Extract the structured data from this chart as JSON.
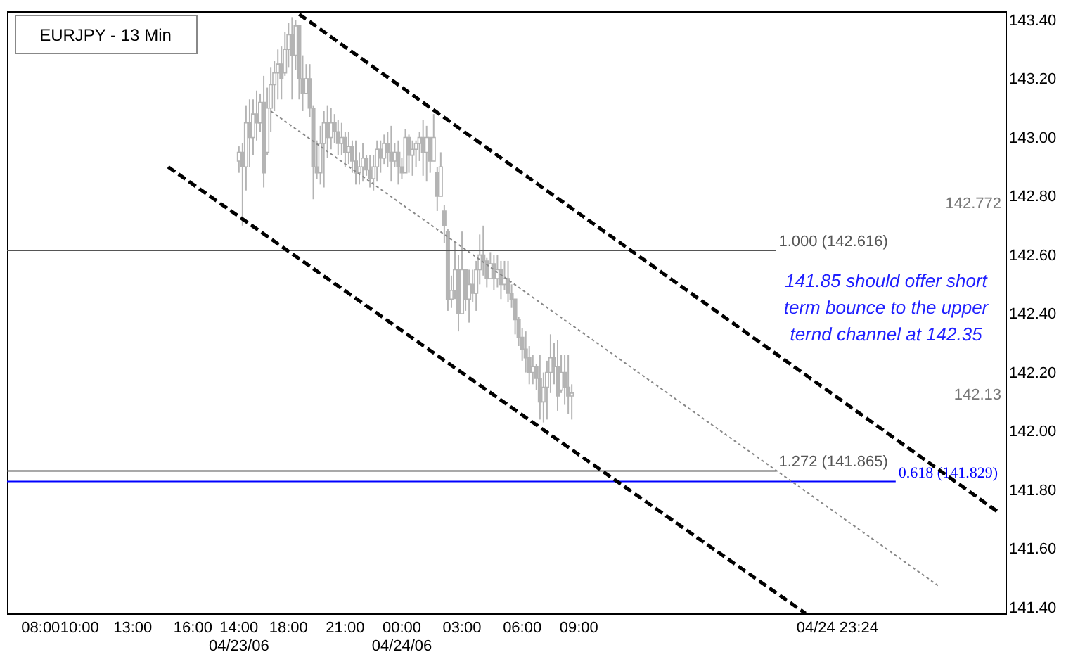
{
  "chart_data": {
    "type": "candlestick",
    "title": "EURJPY - 13 Min",
    "color": "#b4b4b4",
    "categories": [
      null,
      null,
      null,
      null,
      null,
      null,
      null,
      null,
      null,
      "08:00",
      null,
      null,
      null,
      null,
      null,
      null,
      null,
      null,
      null,
      null,
      "10:00",
      null,
      null,
      null,
      null,
      null,
      null,
      null,
      null,
      null,
      null,
      null,
      null,
      null,
      null,
      "13:00",
      null,
      null,
      null,
      null,
      null,
      null,
      null,
      null,
      null,
      null,
      null,
      null,
      null,
      null,
      null,
      null,
      "16:00",
      null,
      null,
      null,
      null,
      null,
      null,
      null,
      null,
      null,
      null,
      null,
      null,
      "14:00\n04/23/06",
      null,
      null,
      null,
      null,
      null,
      null,
      null,
      null,
      null,
      null,
      null,
      null,
      null,
      "18:00",
      null,
      null,
      null,
      null,
      null,
      null,
      null,
      null,
      null,
      null,
      null,
      null,
      null,
      null,
      null,
      "21:00",
      null,
      null,
      null,
      null,
      null,
      null,
      null,
      null,
      null,
      null,
      null,
      null,
      null,
      null,
      null,
      "00:00\n04/24/06",
      null,
      null,
      null,
      null,
      null,
      null,
      null,
      null,
      null,
      null,
      null,
      null,
      null,
      null,
      null,
      null,
      "03:00",
      null,
      null,
      null,
      null,
      null,
      null,
      null,
      null,
      null,
      null,
      null,
      null,
      null,
      null,
      null,
      null,
      "06:00",
      null,
      null,
      null,
      null,
      null,
      null,
      null,
      null,
      null,
      null,
      null,
      null,
      null,
      null,
      null,
      "09:00",
      null,
      null,
      null,
      null,
      null,
      null,
      null,
      null,
      null,
      null,
      null,
      null,
      null,
      null,
      null,
      null,
      null,
      null,
      null,
      null,
      null,
      null,
      null,
      null,
      null,
      null,
      null,
      null,
      null,
      null,
      null,
      null,
      null,
      null,
      null,
      null,
      null,
      null,
      null,
      null,
      null,
      null,
      null,
      null,
      null,
      null,
      null,
      null,
      null,
      null,
      null,
      null,
      null,
      null,
      null,
      null,
      null,
      null,
      null,
      null,
      null,
      null,
      null,
      null,
      null,
      null,
      null,
      null,
      null,
      null,
      null,
      null,
      "04/24 23:24",
      null,
      null,
      null,
      null,
      null,
      null,
      null,
      null,
      null,
      null,
      null,
      null,
      null,
      null,
      null,
      null,
      null,
      null,
      null,
      null,
      null,
      null,
      null,
      null,
      null,
      null,
      null,
      null,
      null,
      null,
      null,
      null,
      null,
      null,
      null,
      null,
      null,
      null,
      null,
      null,
      null,
      null,
      null,
      null,
      null,
      null,
      null
    ],
    "ohlc": [
      null,
      null,
      null,
      null,
      null,
      null,
      null,
      null,
      null,
      null,
      null,
      null,
      null,
      null,
      null,
      null,
      null,
      null,
      null,
      null,
      null,
      null,
      null,
      null,
      null,
      null,
      null,
      null,
      null,
      null,
      null,
      null,
      null,
      null,
      null,
      null,
      null,
      null,
      null,
      null,
      null,
      null,
      null,
      null,
      null,
      null,
      null,
      null,
      null,
      null,
      null,
      null,
      null,
      null,
      null,
      null,
      null,
      null,
      null,
      null,
      null,
      null,
      null,
      null,
      null,
      [
        142.92,
        142.97,
        142.88,
        142.95
      ],
      [
        142.95,
        142.98,
        142.7,
        142.9
      ],
      [
        142.9,
        143.11,
        142.82,
        143.05
      ],
      [
        143.05,
        143.13,
        142.9,
        143.0
      ],
      [
        143.0,
        143.13,
        142.94,
        143.08
      ],
      [
        143.08,
        143.16,
        142.99,
        143.05
      ],
      [
        143.05,
        143.15,
        143.02,
        143.12
      ],
      [
        143.12,
        143.21,
        142.83,
        142.88
      ],
      [
        142.95,
        143.17,
        142.94,
        143.1
      ],
      [
        143.1,
        143.24,
        143.02,
        143.18
      ],
      [
        143.18,
        143.26,
        143.09,
        143.22
      ],
      [
        143.22,
        143.3,
        143.13,
        143.25
      ],
      [
        143.25,
        143.31,
        143.13,
        143.2
      ],
      [
        143.22,
        143.36,
        143.21,
        143.3
      ],
      [
        143.3,
        143.39,
        143.24,
        143.35
      ],
      [
        143.35,
        143.41,
        143.13,
        143.28
      ],
      [
        143.28,
        143.4,
        143.23,
        143.38
      ],
      [
        143.38,
        143.38,
        143.13,
        143.2
      ],
      [
        143.2,
        143.28,
        143.09,
        143.15
      ],
      [
        143.15,
        143.25,
        143.15,
        143.2
      ],
      [
        143.2,
        143.25,
        143.07,
        143.1
      ],
      [
        143.1,
        143.11,
        142.79,
        142.9
      ],
      [
        142.9,
        142.99,
        142.86,
        142.88
      ],
      [
        142.88,
        143.04,
        142.84,
        142.98
      ],
      [
        142.98,
        143.09,
        142.83,
        143.05
      ],
      [
        143.05,
        143.11,
        142.93,
        143.0
      ],
      [
        143.0,
        143.1,
        142.96,
        143.05
      ],
      [
        143.05,
        143.08,
        142.98,
        143.02
      ],
      [
        143.02,
        143.06,
        142.94,
        142.98
      ],
      [
        142.98,
        143.05,
        142.94,
        143.0
      ],
      [
        143.0,
        143.02,
        142.9,
        142.95
      ],
      [
        142.95,
        143.02,
        142.91,
        142.97
      ],
      [
        142.97,
        142.99,
        142.88,
        142.92
      ],
      [
        142.92,
        142.99,
        142.84,
        142.88
      ],
      [
        142.88,
        142.95,
        142.84,
        142.9
      ],
      [
        142.9,
        142.98,
        142.85,
        142.93
      ],
      [
        142.93,
        142.94,
        142.87,
        142.89
      ],
      [
        142.89,
        142.94,
        142.83,
        142.86
      ],
      [
        142.86,
        142.94,
        142.82,
        142.9
      ],
      [
        142.9,
        142.99,
        142.85,
        142.96
      ],
      [
        142.96,
        142.99,
        142.88,
        142.93
      ],
      [
        142.93,
        143.01,
        142.91,
        142.98
      ],
      [
        142.98,
        143.02,
        142.9,
        142.95
      ],
      [
        142.95,
        143.04,
        142.85,
        142.92
      ],
      [
        142.92,
        142.98,
        142.9,
        142.95
      ],
      [
        142.95,
        142.99,
        142.84,
        142.9
      ],
      [
        142.9,
        142.93,
        142.86,
        142.88
      ],
      [
        142.88,
        143.03,
        142.88,
        143.0
      ],
      [
        143.0,
        143.01,
        142.88,
        142.94
      ],
      [
        142.94,
        142.99,
        142.87,
        142.96
      ],
      [
        142.96,
        142.99,
        142.9,
        142.98
      ],
      [
        142.98,
        143.02,
        142.92,
        143.0
      ],
      [
        143.0,
        143.06,
        142.87,
        142.95
      ],
      [
        142.95,
        143.04,
        142.85,
        143.0
      ],
      [
        143.0,
        143.0,
        142.88,
        142.92
      ],
      [
        142.92,
        143.08,
        142.92,
        143.0
      ],
      [
        142.88,
        142.9,
        142.75,
        142.8
      ],
      [
        142.8,
        142.95,
        142.8,
        142.9
      ],
      [
        142.75,
        142.77,
        142.64,
        142.7
      ],
      [
        142.68,
        142.69,
        142.41,
        142.45
      ],
      [
        142.45,
        142.53,
        142.42,
        142.48
      ],
      [
        142.48,
        142.64,
        142.45,
        142.55
      ],
      [
        142.55,
        142.6,
        142.34,
        142.4
      ],
      [
        142.4,
        142.68,
        142.4,
        142.55
      ],
      [
        142.55,
        142.55,
        142.41,
        142.45
      ],
      [
        142.45,
        142.55,
        142.37,
        142.5
      ],
      [
        142.5,
        142.55,
        142.44,
        142.47
      ],
      [
        142.47,
        142.58,
        142.41,
        142.55
      ],
      [
        142.55,
        142.67,
        142.5,
        142.6
      ],
      [
        142.6,
        142.7,
        142.53,
        142.58
      ],
      [
        142.58,
        142.59,
        142.49,
        142.52
      ],
      [
        142.52,
        142.61,
        142.52,
        142.57
      ],
      [
        142.57,
        142.6,
        142.48,
        142.52
      ],
      [
        142.52,
        142.6,
        142.49,
        142.55
      ],
      [
        142.55,
        142.58,
        142.45,
        142.5
      ],
      [
        142.5,
        142.58,
        142.48,
        142.52
      ],
      [
        142.52,
        142.58,
        142.44,
        142.47
      ],
      [
        142.47,
        142.5,
        142.42,
        142.45
      ],
      [
        142.45,
        142.45,
        142.33,
        142.38
      ],
      [
        142.38,
        142.39,
        142.29,
        142.32
      ],
      [
        142.32,
        142.35,
        142.24,
        142.28
      ],
      [
        142.28,
        142.34,
        142.2,
        142.25
      ],
      [
        142.25,
        142.29,
        142.16,
        142.2
      ],
      [
        142.2,
        142.26,
        142.16,
        142.22
      ],
      [
        142.22,
        142.23,
        142.14,
        142.18
      ],
      [
        142.18,
        142.26,
        142.04,
        142.1
      ],
      [
        142.1,
        142.2,
        142.03,
        142.15
      ],
      [
        142.15,
        142.24,
        142.04,
        142.2
      ],
      [
        142.2,
        142.33,
        142.13,
        142.25
      ],
      [
        142.25,
        142.3,
        142.16,
        142.22
      ],
      [
        142.22,
        142.31,
        142.07,
        142.12
      ],
      [
        142.14,
        142.26,
        142.13,
        142.2
      ],
      [
        142.2,
        142.26,
        142.09,
        142.15
      ],
      [
        142.15,
        142.26,
        142.06,
        142.12
      ],
      [
        142.12,
        142.16,
        142.04,
        142.13
      ],
      null,
      null,
      null,
      null,
      null,
      null,
      null,
      null,
      null,
      null,
      null,
      null,
      null,
      null,
      null,
      null,
      null,
      null,
      null,
      null,
      null,
      null,
      null,
      null,
      null,
      null,
      null,
      null,
      null,
      null,
      null,
      null,
      null,
      null,
      null,
      null,
      null,
      null,
      null,
      null,
      null,
      null,
      null,
      null,
      null,
      null,
      null,
      null,
      null,
      null,
      null,
      null,
      null,
      null,
      null,
      null,
      null,
      null,
      null,
      null,
      null,
      null,
      null,
      null,
      null,
      null,
      null,
      null,
      null,
      null,
      null,
      null,
      null,
      null,
      null,
      null,
      null,
      null,
      null,
      null,
      null,
      null,
      null,
      null,
      null,
      null,
      null,
      null,
      null,
      null,
      null,
      null,
      null,
      null,
      null,
      null,
      null,
      null,
      null,
      null,
      null,
      null,
      null,
      null,
      null,
      null,
      null,
      null,
      null,
      null,
      null,
      null,
      null,
      null,
      null,
      null,
      null,
      null,
      null,
      null,
      null,
      null
    ],
    "series": [
      {
        "type": "line",
        "color": "#000000",
        "line_style": "dashed",
        "values": [
          null,
          null,
          null,
          null,
          null,
          null,
          null,
          null,
          null,
          null,
          null,
          null,
          null,
          null,
          null,
          null,
          null,
          null,
          null,
          null,
          null,
          null,
          null,
          null,
          null,
          null,
          null,
          null,
          null,
          null,
          null,
          null,
          null,
          null,
          null,
          null,
          null,
          null,
          null,
          null,
          null,
          null,
          null,
          null,
          null,
          null,
          null,
          null,
          null,
          null,
          null,
          null,
          null,
          null,
          null,
          null,
          null,
          null,
          null,
          null,
          null,
          null,
          null,
          null,
          null,
          null,
          null,
          null,
          null,
          null,
          null,
          null,
          null,
          null,
          null,
          null,
          null,
          null,
          null,
          null,
          null,
          null,
          143.42,
          null,
          null,
          null,
          null,
          null,
          null,
          null,
          null,
          null,
          null,
          null,
          null,
          null,
          null,
          null,
          null,
          null,
          null,
          null,
          null,
          null,
          null,
          null,
          null,
          null,
          null,
          null,
          null,
          null,
          null,
          null,
          null,
          null,
          null,
          null,
          null,
          null,
          null,
          null,
          null,
          null,
          null,
          null,
          null,
          null,
          null,
          null,
          null,
          null,
          null,
          null,
          null,
          null,
          null,
          null,
          null,
          null,
          null,
          null,
          null,
          null,
          null,
          null,
          null,
          null,
          null,
          null,
          null,
          null,
          null,
          null,
          null,
          null,
          null,
          null,
          null,
          null,
          null,
          null,
          null,
          null,
          null,
          null,
          null,
          null,
          null,
          null,
          null,
          null,
          null,
          null,
          null,
          null,
          null,
          null,
          null,
          null,
          null,
          null,
          null,
          null,
          null,
          null,
          null,
          null,
          null,
          null,
          null,
          null,
          null,
          null,
          null,
          null,
          null,
          null,
          null,
          null,
          null,
          null,
          null,
          null,
          null,
          null,
          null,
          null,
          null,
          null,
          null,
          null,
          null,
          null,
          null,
          null,
          null,
          null,
          null,
          null,
          null,
          null,
          null,
          null,
          null,
          null,
          null,
          null,
          null,
          null,
          null,
          null,
          null,
          null,
          null,
          null,
          null,
          null,
          null,
          null,
          null,
          null,
          null,
          null,
          null,
          null,
          null,
          null,
          null,
          null,
          null,
          null,
          null,
          null,
          null,
          null,
          null,
          null,
          null,
          null,
          null,
          null,
          null,
          null,
          null,
          null,
          null,
          null,
          null,
          null,
          null,
          null,
          null,
          null,
          null,
          null,
          null,
          null,
          null,
          null,
          141.72,
          null
        ]
      },
      {
        "type": "line",
        "color": "#000000",
        "line_style": "dashed",
        "values": [
          null,
          null,
          null,
          null,
          null,
          null,
          null,
          null,
          null,
          null,
          null,
          null,
          null,
          null,
          null,
          null,
          null,
          null,
          null,
          null,
          null,
          null,
          null,
          null,
          null,
          null,
          null,
          null,
          null,
          null,
          null,
          null,
          null,
          null,
          null,
          null,
          null,
          null,
          null,
          null,
          null,
          null,
          null,
          null,
          null,
          142.9,
          null,
          null,
          null,
          null,
          null,
          null,
          null,
          null,
          null,
          null,
          null,
          null,
          null,
          null,
          null,
          null,
          null,
          null,
          null,
          null,
          null,
          null,
          null,
          null,
          null,
          null,
          null,
          null,
          null,
          null,
          null,
          null,
          null,
          null,
          null,
          null,
          null,
          null,
          null,
          null,
          null,
          null,
          null,
          null,
          null,
          null,
          null,
          null,
          null,
          null,
          null,
          null,
          null,
          null,
          null,
          null,
          null,
          null,
          null,
          null,
          null,
          null,
          null,
          null,
          null,
          null,
          null,
          null,
          null,
          null,
          null,
          null,
          null,
          null,
          null,
          null,
          null,
          null,
          null,
          null,
          null,
          null,
          null,
          null,
          null,
          null,
          null,
          null,
          null,
          null,
          null,
          null,
          null,
          null,
          null,
          null,
          null,
          null,
          null,
          null,
          null,
          null,
          null,
          null,
          null,
          null,
          null,
          null,
          null,
          null,
          null,
          null,
          null,
          null,
          null,
          null,
          null,
          null,
          null,
          null,
          null,
          null,
          null,
          null,
          null,
          null,
          null,
          null,
          null,
          null,
          null,
          null,
          null,
          null,
          null,
          null,
          null,
          null,
          null,
          null,
          null,
          null,
          null,
          null,
          null,
          null,
          null,
          null,
          null,
          null,
          null,
          null,
          null,
          null,
          null,
          null,
          null,
          null,
          null,
          null,
          null,
          null,
          null,
          null,
          null,
          null,
          null,
          null,
          null,
          null,
          null,
          null,
          null,
          null,
          null,
          null,
          null,
          null,
          null,
          141.38,
          null,
          null,
          null,
          null,
          null,
          null,
          null,
          null,
          null,
          null,
          null,
          null,
          null,
          null,
          null,
          null,
          null,
          null,
          null,
          null,
          null,
          null,
          null,
          null,
          null,
          null,
          null,
          null,
          null,
          null,
          null,
          null,
          null,
          null,
          null,
          null,
          null,
          null,
          null,
          null,
          null,
          null,
          null,
          null,
          null,
          null,
          null,
          null,
          null,
          null,
          null,
          null,
          null,
          null,
          null,
          null
        ]
      },
      {
        "type": "line",
        "color": "#888888",
        "line_style": "dotted",
        "values": [
          null,
          null,
          null,
          null,
          null,
          null,
          null,
          null,
          null,
          null,
          null,
          null,
          null,
          null,
          null,
          null,
          null,
          null,
          null,
          null,
          null,
          null,
          null,
          null,
          null,
          null,
          null,
          null,
          null,
          null,
          null,
          null,
          null,
          null,
          null,
          null,
          null,
          null,
          null,
          null,
          null,
          null,
          null,
          null,
          null,
          null,
          null,
          null,
          null,
          null,
          null,
          null,
          null,
          null,
          null,
          null,
          null,
          null,
          null,
          null,
          null,
          null,
          null,
          null,
          null,
          null,
          null,
          null,
          null,
          null,
          null,
          null,
          null,
          null,
          143.09,
          null,
          null,
          null,
          null,
          null,
          null,
          null,
          null,
          null,
          null,
          null,
          null,
          null,
          null,
          null,
          null,
          null,
          null,
          null,
          null,
          null,
          null,
          null,
          null,
          null,
          null,
          null,
          null,
          null,
          null,
          null,
          null,
          null,
          null,
          null,
          null,
          null,
          null,
          null,
          null,
          null,
          null,
          null,
          null,
          null,
          null,
          null,
          null,
          null,
          null,
          null,
          null,
          null,
          null,
          null,
          null,
          null,
          null,
          null,
          null,
          null,
          null,
          null,
          null,
          null,
          null,
          null,
          null,
          null,
          null,
          null,
          null,
          null,
          null,
          null,
          null,
          null,
          null,
          null,
          null,
          null,
          null,
          null,
          null,
          null,
          null,
          null,
          null,
          null,
          null,
          null,
          null,
          null,
          null,
          null,
          null,
          null,
          null,
          null,
          null,
          null,
          null,
          null,
          null,
          null,
          null,
          null,
          null,
          null,
          null,
          null,
          null,
          null,
          null,
          null,
          null,
          null,
          null,
          null,
          null,
          null,
          null,
          null,
          null,
          null,
          null,
          null,
          null,
          null,
          null,
          null,
          null,
          null,
          null,
          null,
          null,
          null,
          null,
          null,
          null,
          null,
          null,
          null,
          null,
          null,
          null,
          null,
          null,
          null,
          null,
          null,
          null,
          null,
          null,
          null,
          null,
          null,
          null,
          null,
          null,
          null,
          null,
          null,
          null,
          null,
          null,
          null,
          null,
          null,
          null,
          null,
          null,
          null,
          null,
          null,
          null,
          null,
          null,
          null,
          null,
          null,
          null,
          null,
          null,
          null,
          null,
          null,
          null,
          141.47,
          null,
          null,
          null,
          null,
          null,
          null,
          null,
          null,
          null,
          null,
          null,
          null,
          null,
          null,
          null,
          null,
          null,
          null
        ]
      }
    ],
    "ref_lines": [
      {
        "axis": "y",
        "value": 142.616,
        "label": "1.000 (142.616)",
        "color": "#555555"
      },
      {
        "axis": "y",
        "value": 141.865,
        "label": "1.272 (141.865)",
        "color": "#555555"
      },
      {
        "axis": "y",
        "value": 141.829,
        "label": "0.618 (141.829)",
        "color": "#0000ff"
      }
    ],
    "annotations": [
      "141.85 should offer short\nterm bounce to the upper\nternd channel at 142.35",
      "142.772",
      "142.13"
    ],
    "ylim": [
      141.38,
      143.43
    ],
    "yticks": [
      {
        "value": 141.4,
        "label": "141.40"
      },
      {
        "value": 141.6,
        "label": "141.60"
      },
      {
        "value": 141.8,
        "label": "141.80"
      },
      {
        "value": 142.0,
        "label": "142.00"
      },
      {
        "value": 142.2,
        "label": "142.20"
      },
      {
        "value": 142.4,
        "label": "142.40"
      },
      {
        "value": 142.6,
        "label": "142.60"
      },
      {
        "value": 142.8,
        "label": "142.80"
      },
      {
        "value": 143.0,
        "label": "143.00"
      },
      {
        "value": 143.2,
        "label": "143.20"
      },
      {
        "value": 143.4,
        "label": "143.40"
      }
    ],
    "grid": false
  }
}
